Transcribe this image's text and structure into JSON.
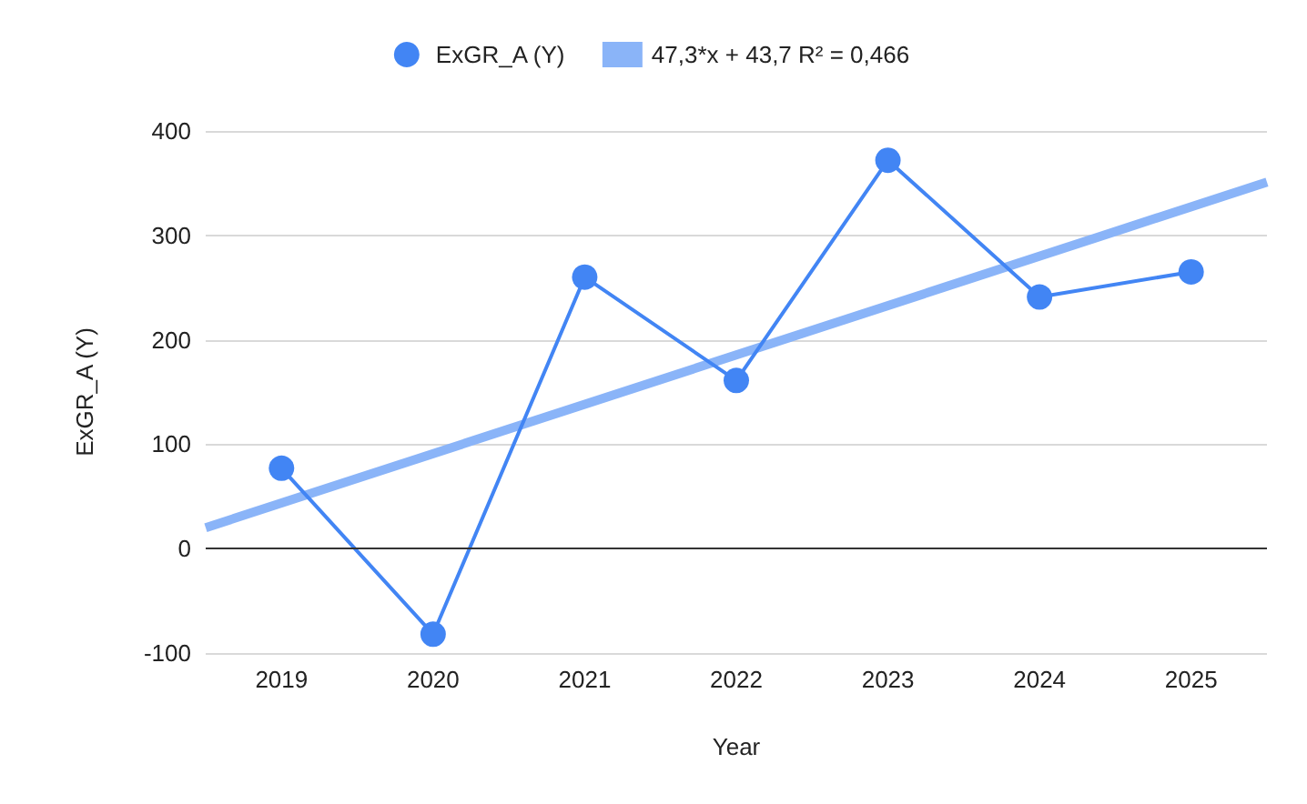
{
  "chart_data": {
    "type": "line",
    "xlabel": "Year",
    "ylabel": "ExGR_A (Y)",
    "x": [
      2019,
      2020,
      2021,
      2022,
      2023,
      2024,
      2025
    ],
    "xlim": [
      2018.5,
      2025.5
    ],
    "xticks": [
      2019,
      2020,
      2021,
      2022,
      2023,
      2024,
      2025
    ],
    "ylim": [
      -100,
      400
    ],
    "yticks": [
      -100,
      0,
      100,
      200,
      300,
      400
    ],
    "series": [
      {
        "name": "ExGR_A (Y)",
        "color": "#4285f4",
        "marker": "circle",
        "values": [
          77,
          -82,
          260,
          161,
          372,
          241,
          265
        ]
      },
      {
        "name": "47,3*x + 43,7 R² = 0,466",
        "type": "line",
        "color": "#8ab4f8",
        "marker": "none",
        "x": [
          2018.5,
          2025.5
        ],
        "values": [
          20,
          351
        ]
      }
    ],
    "ref_lines": [
      {
        "axis": "y",
        "value": 0,
        "color": "#333333"
      }
    ],
    "grid": "y",
    "legend": "top"
  }
}
